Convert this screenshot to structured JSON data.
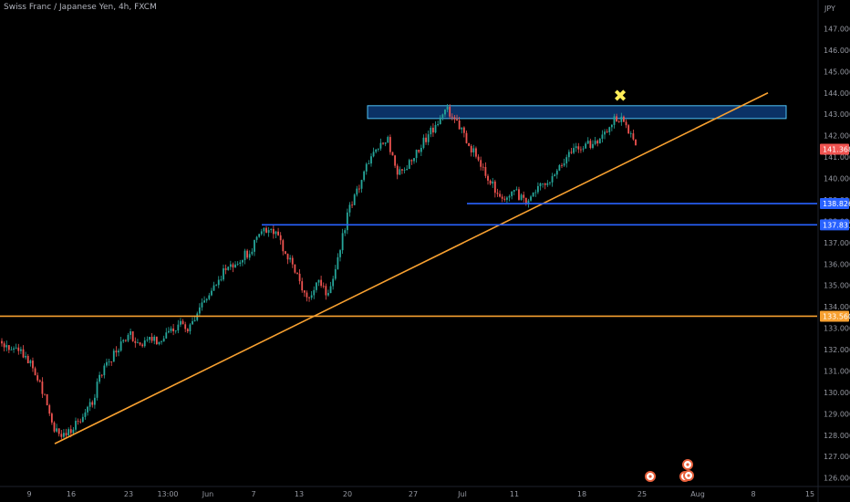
{
  "chart_data": {
    "type": "candlestick",
    "title": "Swiss Franc / Japanese Yen, 4h, FXCM",
    "currency_label": "JPY",
    "ylim": [
      125.6,
      148.0
    ],
    "y_ticks": [
      "147.000",
      "146.000",
      "145.000",
      "144.000",
      "143.000",
      "142.000",
      "141.000",
      "140.000",
      "139.000",
      "138.000",
      "137.000",
      "136.000",
      "135.000",
      "134.000",
      "133.000",
      "132.000",
      "131.000",
      "130.000",
      "129.000",
      "128.000",
      "127.000",
      "126.000"
    ],
    "x_ticks": [
      "9",
      "16",
      "23",
      "13:00",
      "Jun",
      "7",
      "13",
      "20",
      "27",
      "Jul",
      "11",
      "18",
      "25",
      "Aug",
      "8",
      "15"
    ],
    "last_price": "141.368",
    "price_levels": [
      "138.826",
      "137.831",
      "133.560"
    ],
    "colors": {
      "up": "#26a69a",
      "down": "#ef5350",
      "trendline": "#f7a030",
      "support": "#2962ff",
      "zone_fill": "#0d3b78",
      "zone_border": "#4fc3f7",
      "marker": "#ffee58"
    },
    "path": [
      132.4,
      132.1,
      131.8,
      131.4,
      130.3,
      128.6,
      127.9,
      128.3,
      128.8,
      129.4,
      130.8,
      131.6,
      132.2,
      132.7,
      132.3,
      132.5,
      132.4,
      132.9,
      133.2,
      133.0,
      134.0,
      134.6,
      135.4,
      135.9,
      136.2,
      136.6,
      137.3,
      137.7,
      137.1,
      136.2,
      135.2,
      134.3,
      135.2,
      134.4,
      136.5,
      138.4,
      139.6,
      140.7,
      141.5,
      141.8,
      140.2,
      140.6,
      141.3,
      142.0,
      142.6,
      143.2,
      142.6,
      141.7,
      141.0,
      140.2,
      139.2,
      139.2,
      139.3,
      138.9,
      139.6,
      139.8,
      140.5,
      141.0,
      141.4,
      141.6,
      141.7,
      142.3,
      142.9,
      142.6,
      141.5
    ],
    "annotations": [
      {
        "type": "trendline",
        "name": "rising trendline",
        "y_start": 127.6,
        "y_end": 144.0
      },
      {
        "type": "hline",
        "name": "support 138.826",
        "y": 138.826
      },
      {
        "type": "hline",
        "name": "support 137.831",
        "y": 137.831
      },
      {
        "type": "hline",
        "name": "horizontal 133.560",
        "y": 133.56
      },
      {
        "type": "zone",
        "name": "resistance zone",
        "y_low": 142.8,
        "y_high": 143.4
      },
      {
        "type": "marker",
        "name": "x-marker",
        "symbol": "✖",
        "y": 143.9
      }
    ],
    "event_markers": 4,
    "grid": false,
    "legend": "none"
  }
}
